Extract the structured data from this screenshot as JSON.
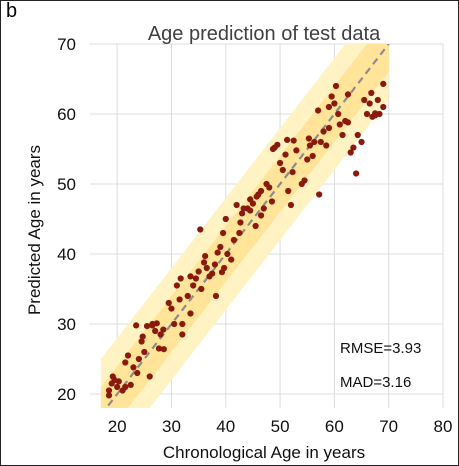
{
  "panel_label": "b",
  "chart_data": {
    "type": "scatter",
    "title": "Age prediction of test data",
    "xlabel": "Chronological Age in years",
    "ylabel": "Predicted Age in years",
    "xlim": [
      15,
      80
    ],
    "ylim": [
      18,
      70
    ],
    "xticks": [
      20,
      30,
      40,
      50,
      60,
      70,
      80
    ],
    "yticks": [
      20,
      30,
      40,
      50,
      60,
      70
    ],
    "grid": true,
    "identity_line": {
      "x": [
        17,
        70
      ],
      "y": [
        17,
        70
      ],
      "style": "dashed",
      "color": "#8c8c8c"
    },
    "bands": [
      {
        "half_width": 8,
        "x": [
          17,
          70
        ],
        "color": "#fff3c4"
      },
      {
        "half_width": 4,
        "x": [
          17,
          70
        ],
        "color": "#ffe49a"
      }
    ],
    "point_color": "#8b1a0e",
    "annotations": [
      "RMSE=3.93",
      "MAD=3.16"
    ],
    "points": [
      [
        18.5,
        20.5
      ],
      [
        18.5,
        19.8
      ],
      [
        19,
        21.5
      ],
      [
        19.2,
        22.5
      ],
      [
        19.5,
        22
      ],
      [
        20,
        21
      ],
      [
        20.3,
        21.8
      ],
      [
        21,
        20.5
      ],
      [
        21.5,
        21
      ],
      [
        21.5,
        24.5
      ],
      [
        22,
        25.5
      ],
      [
        22.5,
        21.3
      ],
      [
        23,
        23.8
      ],
      [
        23.5,
        29.8
      ],
      [
        23.7,
        23
      ],
      [
        24,
        25
      ],
      [
        24.5,
        27.5
      ],
      [
        24.7,
        28.2
      ],
      [
        25,
        26
      ],
      [
        25.5,
        29.7
      ],
      [
        26,
        22.5
      ],
      [
        26.5,
        30
      ],
      [
        27,
        29
      ],
      [
        27.3,
        30.1
      ],
      [
        27.7,
        26.5
      ],
      [
        28,
        28.5
      ],
      [
        28.5,
        29.2
      ],
      [
        28.6,
        26.4
      ],
      [
        29.5,
        33
      ],
      [
        30,
        32.2
      ],
      [
        30.5,
        30
      ],
      [
        31,
        35.5
      ],
      [
        31.5,
        33.5
      ],
      [
        31.7,
        36.5
      ],
      [
        32,
        30
      ],
      [
        32,
        28.5
      ],
      [
        33,
        34
      ],
      [
        33.5,
        31.5
      ],
      [
        34,
        35.5
      ],
      [
        34.5,
        36.5
      ],
      [
        35,
        37.5
      ],
      [
        35.3,
        43.5
      ],
      [
        35.5,
        35
      ],
      [
        36,
        38.8
      ],
      [
        36.2,
        39.7
      ],
      [
        36.5,
        38
      ],
      [
        37,
        36.8
      ],
      [
        37.5,
        37.2
      ],
      [
        38,
        38.5
      ],
      [
        38.2,
        34
      ],
      [
        38.5,
        40.2
      ],
      [
        39,
        41
      ],
      [
        39.3,
        37.4
      ],
      [
        39.5,
        43
      ],
      [
        39.7,
        38
      ],
      [
        40,
        45
      ],
      [
        40.3,
        40
      ],
      [
        41,
        39.2
      ],
      [
        41.5,
        42
      ],
      [
        42,
        47
      ],
      [
        42.5,
        43
      ],
      [
        42.7,
        44.5
      ],
      [
        43,
        45.8
      ],
      [
        43.3,
        46.5
      ],
      [
        44,
        46.5
      ],
      [
        44.5,
        46.2
      ],
      [
        45,
        47.2
      ],
      [
        45.5,
        44
      ],
      [
        45.7,
        48.2
      ],
      [
        46,
        48.5
      ],
      [
        46.5,
        45.5
      ],
      [
        47,
        46.5
      ],
      [
        47.5,
        50
      ],
      [
        48,
        49.5
      ],
      [
        48.5,
        47.5
      ],
      [
        48.7,
        55
      ],
      [
        49,
        55.2
      ],
      [
        49.5,
        55.6
      ],
      [
        50,
        53
      ],
      [
        50.5,
        52
      ],
      [
        51,
        54.2
      ],
      [
        51.3,
        56.3
      ],
      [
        51.5,
        49
      ],
      [
        52,
        47
      ],
      [
        52.3,
        51.7
      ],
      [
        52.5,
        56.2
      ],
      [
        53,
        54.8
      ],
      [
        54,
        50
      ],
      [
        54.5,
        50.5
      ],
      [
        55,
        53.5
      ],
      [
        55.3,
        56.5
      ],
      [
        55.5,
        55.5
      ],
      [
        56,
        54
      ],
      [
        57,
        60.5
      ],
      [
        57.2,
        48.5
      ],
      [
        57.5,
        56
      ],
      [
        58,
        57.5
      ],
      [
        58.5,
        55.5
      ],
      [
        59,
        58
      ],
      [
        59.5,
        62.5
      ],
      [
        60,
        61.5
      ],
      [
        60.3,
        64
      ],
      [
        60.7,
        60
      ],
      [
        61,
        58.5
      ],
      [
        61.5,
        57
      ],
      [
        62,
        59
      ],
      [
        62.5,
        58.8
      ],
      [
        63,
        54.5
      ],
      [
        63.5,
        55.2
      ],
      [
        64,
        51.5
      ],
      [
        64.3,
        57
      ],
      [
        65,
        56
      ],
      [
        65.5,
        62
      ],
      [
        66,
        60
      ],
      [
        66.5,
        61.5
      ],
      [
        67,
        59.6
      ],
      [
        67.5,
        60.1
      ],
      [
        68,
        62
      ],
      [
        68.3,
        60
      ],
      [
        69,
        61
      ],
      [
        69,
        64.3
      ],
      [
        67.5,
        59.8
      ],
      [
        59,
        61
      ],
      [
        44.5,
        47.8
      ],
      [
        33.5,
        36.8
      ],
      [
        26.5,
        29.8
      ],
      [
        46.5,
        49
      ],
      [
        56.3,
        56
      ],
      [
        62.5,
        62.8
      ],
      [
        66.8,
        63
      ]
    ]
  }
}
